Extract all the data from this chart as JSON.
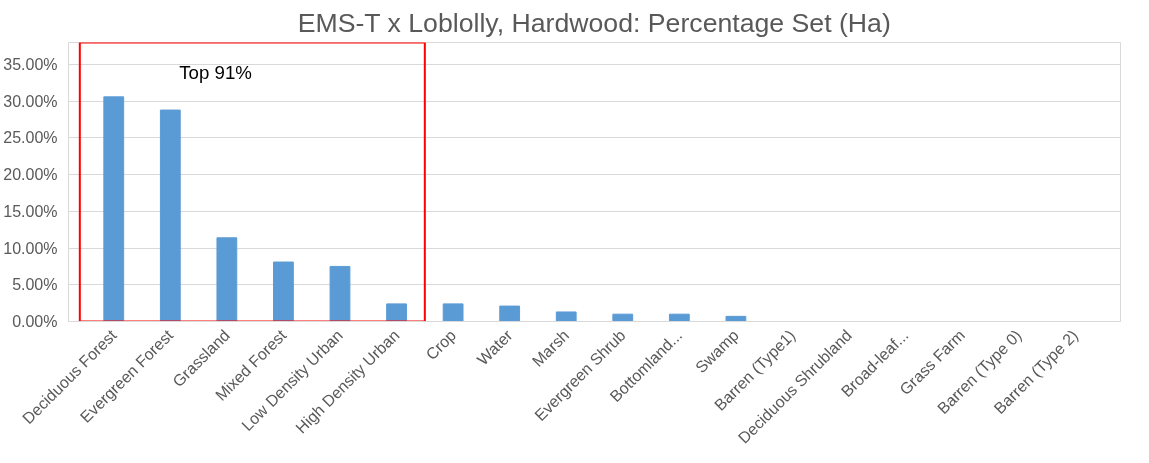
{
  "chart_data": {
    "type": "bar",
    "title": "EMS-T x Loblolly, Hardwood: Percentage Set (Ha)",
    "categories": [
      "Deciduous Forest",
      "Evergreen Forest",
      "Grassland",
      "Mixed Forest",
      "Low Density Urban",
      "High Density Urban",
      "Crop",
      "Water",
      "Marsh",
      "Evergreen Shrub",
      "Bottomland...",
      "Swamp",
      "Barren (Type1)",
      "Deciduous Shrubland",
      "Broad-leaf...",
      "Grass Farm",
      "Barren (Type 0)",
      "Barren (Type 2)"
    ],
    "values": [
      30.6,
      28.8,
      11.4,
      8.1,
      7.5,
      2.4,
      2.4,
      2.1,
      1.3,
      1.0,
      1.0,
      0.7,
      0,
      0,
      0,
      0,
      0,
      0
    ],
    "color": "#5b9bd5",
    "ylim": [
      0,
      38
    ],
    "yticks": [
      {
        "value": 0,
        "label": "0.00%"
      },
      {
        "value": 5,
        "label": "5.00%"
      },
      {
        "value": 10,
        "label": "10.00%"
      },
      {
        "value": 15,
        "label": "15.00%"
      },
      {
        "value": 20,
        "label": "20.00%"
      },
      {
        "value": 25,
        "label": "25.00%"
      },
      {
        "value": 30,
        "label": "30.00%"
      },
      {
        "value": 35,
        "label": "35.00%"
      }
    ],
    "grid": "y",
    "annotations": [
      "Top 91%"
    ]
  }
}
